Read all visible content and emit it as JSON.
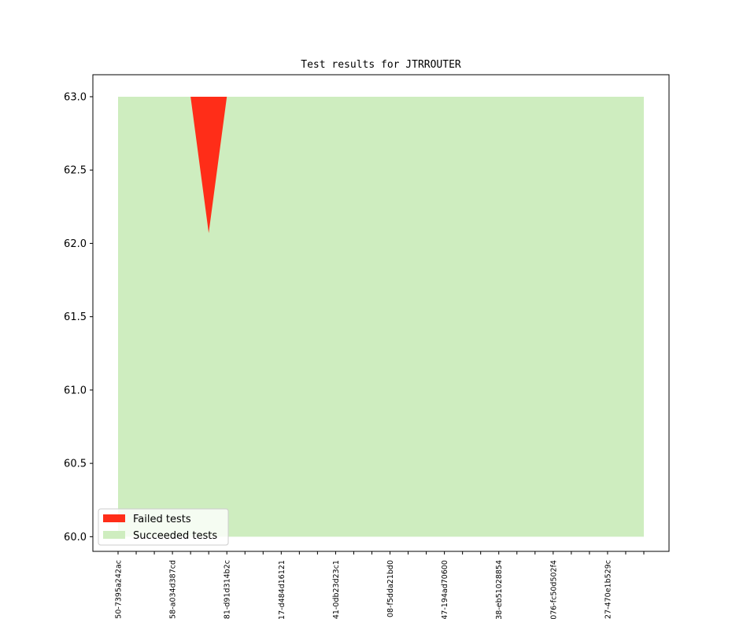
{
  "chart_data": {
    "type": "area",
    "title": "Test results for JTRROUTER",
    "xlabel": "",
    "ylabel": "",
    "ylim": [
      59.9,
      63.15
    ],
    "yticks": [
      60.0,
      60.5,
      61.0,
      61.5,
      62.0,
      62.5,
      63.0
    ],
    "ytick_labels": [
      "60.0",
      "60.5",
      "61.0",
      "61.5",
      "62.0",
      "62.5",
      "63.0"
    ],
    "x_count": 30,
    "xtick_labels": [
      "50-7395a242ac",
      "58-a034d387cd",
      "81-d91d314b2c",
      "17-d484d16121",
      "41-0db23d23c1",
      "08-f5dda21bd0",
      "47-194ad70600",
      "38-eb51028854",
      "076-fc50d502f4",
      "27-470e1b529c"
    ],
    "xtick_label_every": 3,
    "grid": false,
    "legend": "lower-left",
    "series": [
      {
        "name": "Succeeded tests",
        "color": "#ceedbf",
        "lower": 60,
        "upper": 63
      },
      {
        "name": "Failed tests",
        "color": "#ff2d18",
        "lower": [
          63,
          63,
          63,
          63,
          63,
          62.07,
          63,
          63,
          63,
          63,
          63,
          63,
          63,
          63,
          63,
          63,
          63,
          63,
          63,
          63,
          63,
          63,
          63,
          63,
          63,
          63,
          63,
          63,
          63,
          63
        ],
        "upper": 63
      }
    ]
  }
}
